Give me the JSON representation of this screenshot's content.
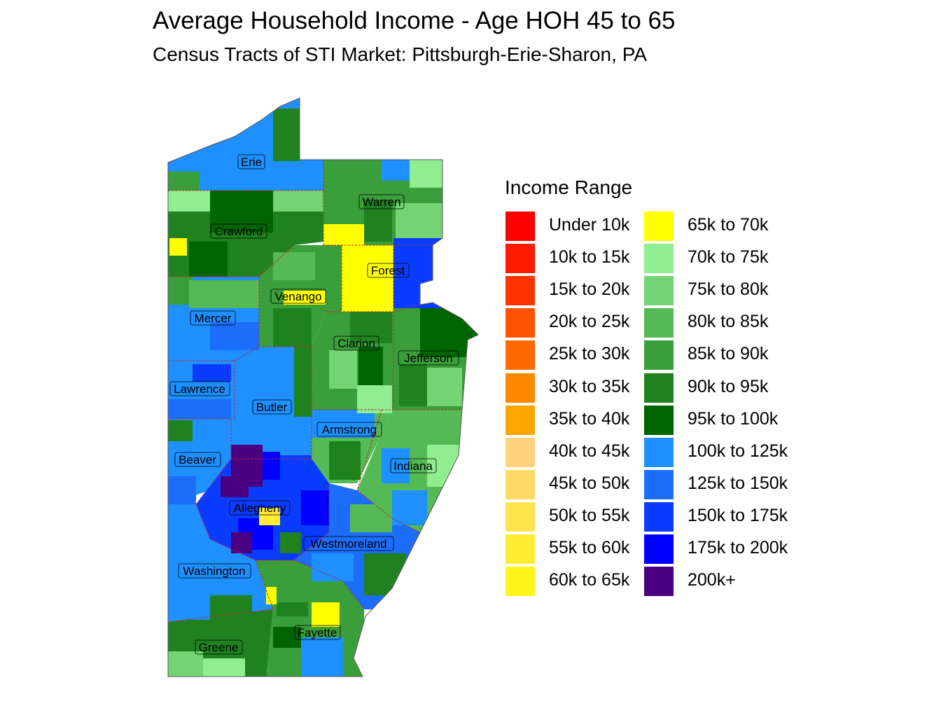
{
  "title": "Average Household Income - Age HOH 45 to 65",
  "subtitle": "Census Tracts of STI Market: Pittsburgh-Erie-Sharon, PA",
  "legend": {
    "title": "Income Range",
    "items": [
      {
        "label": "Under 10k",
        "color": "#ff0000"
      },
      {
        "label": "10k to 15k",
        "color": "#ff1a00"
      },
      {
        "label": "15k to 20k",
        "color": "#ff3300"
      },
      {
        "label": "20k to 25k",
        "color": "#ff5200"
      },
      {
        "label": "25k to 30k",
        "color": "#ff6a00"
      },
      {
        "label": "30k to 35k",
        "color": "#ff8800"
      },
      {
        "label": "35k to 40k",
        "color": "#ffa500"
      },
      {
        "label": "40k to 45k",
        "color": "#ffd280"
      },
      {
        "label": "45k to 50k",
        "color": "#ffd966"
      },
      {
        "label": "50k to 55k",
        "color": "#ffe44d"
      },
      {
        "label": "55k to 60k",
        "color": "#ffec33"
      },
      {
        "label": "60k to 65k",
        "color": "#fff51a"
      },
      {
        "label": "65k to 70k",
        "color": "#ffff00"
      },
      {
        "label": "70k to 75k",
        "color": "#90ee90"
      },
      {
        "label": "75k to 80k",
        "color": "#74d474"
      },
      {
        "label": "80k to 85k",
        "color": "#55b955"
      },
      {
        "label": "85k to 90k",
        "color": "#3a9e3a"
      },
      {
        "label": "90k to 95k",
        "color": "#1f821f"
      },
      {
        "label": "95k to 100k",
        "color": "#006400"
      },
      {
        "label": "100k to 125k",
        "color": "#1e90ff"
      },
      {
        "label": "125k to 150k",
        "color": "#1c6dfa"
      },
      {
        "label": "150k to 175k",
        "color": "#0a3cff"
      },
      {
        "label": "175k to 200k",
        "color": "#0000ff"
      },
      {
        "label": "200k+",
        "color": "#4b0082"
      }
    ]
  },
  "counties": [
    {
      "name": "Erie",
      "dominant_color": "#1e90ff"
    },
    {
      "name": "Warren",
      "dominant_color": "#3a9e3a"
    },
    {
      "name": "Crawford",
      "dominant_color": "#1f821f"
    },
    {
      "name": "Forest",
      "dominant_color": "#ffff00"
    },
    {
      "name": "Venango",
      "dominant_color": "#3a9e3a"
    },
    {
      "name": "Mercer",
      "dominant_color": "#1e90ff"
    },
    {
      "name": "Clarion",
      "dominant_color": "#3a9e3a"
    },
    {
      "name": "Jefferson",
      "dominant_color": "#3a9e3a"
    },
    {
      "name": "Lawrence",
      "dominant_color": "#1e90ff"
    },
    {
      "name": "Butler",
      "dominant_color": "#1e90ff"
    },
    {
      "name": "Armstrong",
      "dominant_color": "#55b955"
    },
    {
      "name": "Indiana",
      "dominant_color": "#55b955"
    },
    {
      "name": "Beaver",
      "dominant_color": "#1e90ff"
    },
    {
      "name": "Allegheny",
      "dominant_color": "#0a3cff"
    },
    {
      "name": "Westmoreland",
      "dominant_color": "#1c6dfa"
    },
    {
      "name": "Washington",
      "dominant_color": "#1e90ff"
    },
    {
      "name": "Fayette",
      "dominant_color": "#3a9e3a"
    },
    {
      "name": "Greene",
      "dominant_color": "#1f821f"
    }
  ]
}
